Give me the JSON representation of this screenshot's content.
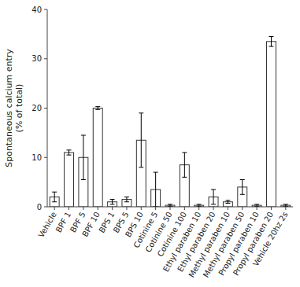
{
  "chart_data": {
    "type": "bar",
    "categories": [
      "Vehicle",
      "BPF 1",
      "BPF 5",
      "BPF 10",
      "BPS 1",
      "BPS 5",
      "BPS 10",
      "Cotinine 5",
      "Cotinine 50",
      "Cotinine 100",
      "Ethyl paraben 10",
      "Ethyl paraben 20",
      "Methyl paraben 10",
      "Methyl paraben 50",
      "Propyl paraben 10",
      "Propyl paraben 20",
      "Vehicle 20hz 2s"
    ],
    "values": [
      2.0,
      11.0,
      10.0,
      20.0,
      1.0,
      1.5,
      13.5,
      3.5,
      0.3,
      8.5,
      0.3,
      2.0,
      1.0,
      4.0,
      0.3,
      33.5,
      0.3
    ],
    "errors": [
      1.0,
      0.5,
      4.5,
      0.3,
      0.5,
      0.5,
      5.5,
      3.5,
      0.2,
      2.5,
      0.2,
      1.5,
      0.3,
      1.5,
      0.2,
      1.0,
      0.2
    ],
    "color": "#ffffff",
    "ylabel": "Spontaneous calcium entry\n(% of total)",
    "ylim": [
      0,
      40
    ],
    "yticks": [
      0,
      10,
      20,
      30,
      40
    ]
  }
}
